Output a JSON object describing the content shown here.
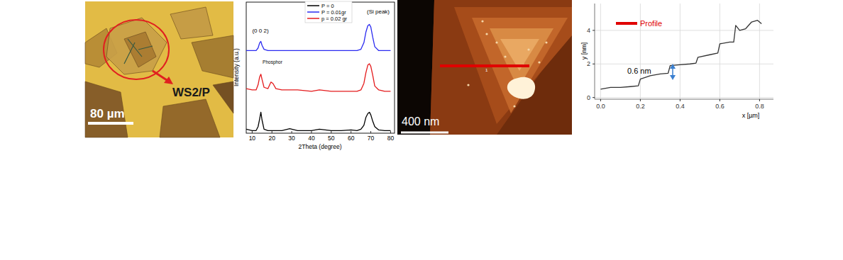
{
  "chart_data": [
    {
      "type": "line",
      "x_label": "2Theta (degree)",
      "y_label": "Intensity (a.u.)",
      "x": [
        7,
        10,
        12,
        13,
        13.8,
        14.4,
        15,
        16,
        18,
        19.5,
        20.5,
        22,
        25,
        29,
        33,
        40,
        44,
        50,
        55,
        60,
        63,
        65,
        66.5,
        67.5,
        68.5,
        69.3,
        70,
        71,
        72,
        74,
        77,
        80
      ],
      "series": [
        {
          "name": "P = 0",
          "color": "#000000",
          "values": [
            0.3,
            0.2,
            0.2,
            0.5,
            1.1,
            1.6,
            1.0,
            0.3,
            0.2,
            0.2,
            0.2,
            0.2,
            0.2,
            0.35,
            0.2,
            0.2,
            0.3,
            0.2,
            0.2,
            0.25,
            0.2,
            0.3,
            0.6,
            1.2,
            1.5,
            1.6,
            1.4,
            0.9,
            0.5,
            0.25,
            0.2,
            0.2
          ]
        },
        {
          "name": "P = 0.01gr",
          "color": "#2b2bf0",
          "values": [
            6.3,
            6.3,
            6.3,
            6.5,
            6.9,
            7.0,
            6.7,
            6.4,
            6.3,
            6.3,
            6.3,
            6.3,
            6.3,
            6.3,
            6.3,
            6.3,
            6.3,
            6.3,
            6.3,
            6.3,
            6.3,
            6.4,
            6.9,
            7.7,
            8.2,
            8.3,
            8.1,
            7.3,
            6.6,
            6.3,
            6.3,
            6.3
          ]
        },
        {
          "name": "p = 0.02 gr",
          "color": "#e41a1c",
          "values": [
            3.4,
            3.3,
            3.3,
            3.7,
            4.3,
            4.5,
            4.1,
            3.5,
            3.4,
            3.9,
            3.8,
            3.4,
            3.3,
            3.3,
            3.3,
            3.2,
            3.3,
            3.2,
            3.2,
            3.2,
            3.2,
            3.3,
            3.8,
            4.6,
            5.2,
            5.3,
            5.1,
            4.4,
            3.6,
            3.3,
            3.2,
            3.2
          ]
        }
      ],
      "annotations": [
        "(0 0 2)",
        "Phosphor",
        "(Si peak)"
      ],
      "xlim": [
        7,
        82
      ],
      "xticks": [
        10,
        20,
        30,
        40,
        50,
        60,
        70,
        80
      ],
      "ylim": [
        0,
        10
      ],
      "yticks": [],
      "tick_labels": "x",
      "grid": false,
      "legend": "top"
    },
    {
      "type": "line",
      "x_label": "x [µm]",
      "y_label": "y [nm]",
      "x": [
        0,
        0.05,
        0.1,
        0.15,
        0.19,
        0.2,
        0.25,
        0.3,
        0.34,
        0.35,
        0.4,
        0.45,
        0.48,
        0.49,
        0.55,
        0.59,
        0.6,
        0.65,
        0.67,
        0.68,
        0.7,
        0.73,
        0.76,
        0.79,
        0.81
      ],
      "series": [
        {
          "name": "Profile",
          "color": "#e00000",
          "values": [
            0.5,
            0.6,
            0.6,
            0.65,
            0.7,
            1.1,
            1.3,
            1.4,
            1.45,
            1.9,
            1.95,
            2.0,
            2.05,
            2.4,
            2.55,
            2.65,
            3.2,
            3.3,
            3.3,
            4.3,
            4.0,
            4.1,
            4.5,
            4.6,
            4.4
          ]
        }
      ],
      "annotations": [
        "0.6 nm"
      ],
      "xlim": [
        -0.03,
        0.87
      ],
      "xticks": [
        {
          "value": 0,
          "label": "0.0"
        },
        0.2,
        0.4,
        0.6,
        0.8
      ],
      "ylim": [
        -0.1,
        5.6
      ],
      "yticks": [
        0,
        2,
        4
      ],
      "grid": true,
      "legend": "top-left"
    }
  ],
  "images": [
    {
      "label": "WS2/P",
      "scale_bar": "80 µm"
    },
    {
      "scale_bar": "400 nm",
      "marker_label": "1"
    }
  ]
}
